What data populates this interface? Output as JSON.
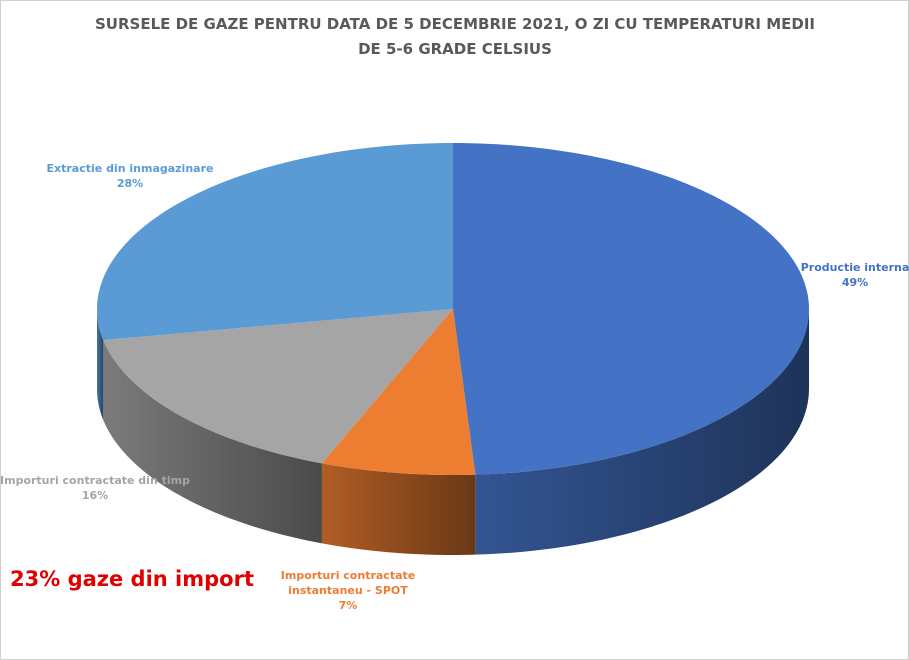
{
  "chart_data": {
    "type": "pie",
    "title": "SURSELE DE GAZE PENTRU DATA DE 5 DECEMBRIE 2021, O ZI CU TEMPERATURI MEDII DE 5-6 GRADE CELSIUS",
    "categories": [
      "Productie interna",
      "Importuri contractate instantaneu - SPOT",
      "Importuri contractate din timp",
      "Extractie din inmagazinare"
    ],
    "values": [
      49,
      7,
      16,
      28
    ],
    "value_labels": [
      "49%",
      "7%",
      "16%",
      "28%"
    ],
    "colors": [
      "#4472c4",
      "#ed7d31",
      "#a5a5a5",
      "#5b9bd5"
    ],
    "annotation": "23% gaze din import"
  }
}
